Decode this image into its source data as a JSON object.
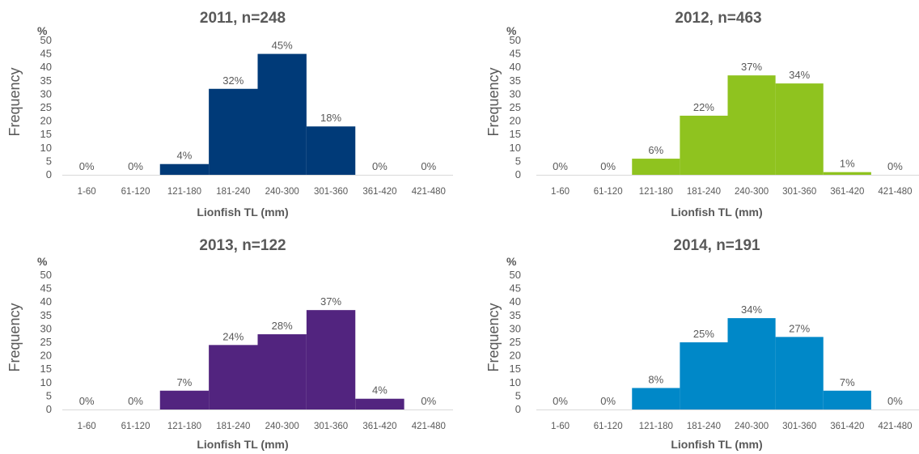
{
  "chart_data": [
    {
      "type": "bar",
      "title": "2011, n=248",
      "ylabel": "Frequency",
      "yunit": "%",
      "xlabel": "Lionfish TL (mm)",
      "categories": [
        "1-60",
        "61-120",
        "121-180",
        "181-240",
        "240-300",
        "301-360",
        "361-420",
        "421-480"
      ],
      "values": [
        0,
        0,
        4,
        32,
        45,
        18,
        0,
        0
      ],
      "data_labels": [
        "0%",
        "0%",
        "4%",
        "32%",
        "45%",
        "18%",
        "0%",
        "0%"
      ],
      "ylim": [
        0,
        50
      ],
      "yticks": [
        "0",
        "5",
        "10",
        "15",
        "20",
        "25",
        "30",
        "35",
        "40",
        "45",
        "50"
      ],
      "color": "#003a78"
    },
    {
      "type": "bar",
      "title": "2012, n=463",
      "ylabel": "Frequency",
      "yunit": "%",
      "xlabel": "Lionfish TL (mm)",
      "categories": [
        "1-60",
        "61-120",
        "121-180",
        "181-240",
        "240-300",
        "301-360",
        "361-420",
        "421-480"
      ],
      "values": [
        0,
        0,
        6,
        22,
        37,
        34,
        1,
        0
      ],
      "data_labels": [
        "0%",
        "0%",
        "6%",
        "22%",
        "37%",
        "34%",
        "1%",
        "0%"
      ],
      "ylim": [
        0,
        50
      ],
      "yticks": [
        "0",
        "5",
        "10",
        "15",
        "20",
        "25",
        "30",
        "35",
        "40",
        "45",
        "50"
      ],
      "color": "#8fc31f"
    },
    {
      "type": "bar",
      "title": "2013, n=122",
      "ylabel": "Frequency",
      "yunit": "%",
      "xlabel": "Lionfish TL  (mm)",
      "categories": [
        "1-60",
        "61-120",
        "121-180",
        "181-240",
        "240-300",
        "301-360",
        "361-420",
        "421-480"
      ],
      "values": [
        0,
        0,
        7,
        24,
        28,
        37,
        4,
        0
      ],
      "data_labels": [
        "0%",
        "0%",
        "7%",
        "24%",
        "28%",
        "37%",
        "4%",
        "0%"
      ],
      "ylim": [
        0,
        50
      ],
      "yticks": [
        "0",
        "5",
        "10",
        "15",
        "20",
        "25",
        "30",
        "35",
        "40",
        "45",
        "50"
      ],
      "color": "#52247f"
    },
    {
      "type": "bar",
      "title": "2014, n=191",
      "ylabel": "Frequency",
      "yunit": "%",
      "xlabel": "Lionfish TL  (mm)",
      "categories": [
        "1-60",
        "61-120",
        "121-180",
        "181-240",
        "240-300",
        "301-360",
        "361-420",
        "421-480"
      ],
      "values": [
        0,
        0,
        8,
        25,
        34,
        27,
        7,
        0
      ],
      "data_labels": [
        "0%",
        "0%",
        "8%",
        "25%",
        "34%",
        "27%",
        "7%",
        "0%"
      ],
      "ylim": [
        0,
        50
      ],
      "yticks": [
        "0",
        "5",
        "10",
        "15",
        "20",
        "25",
        "30",
        "35",
        "40",
        "45",
        "50"
      ],
      "color": "#0088c8"
    }
  ]
}
